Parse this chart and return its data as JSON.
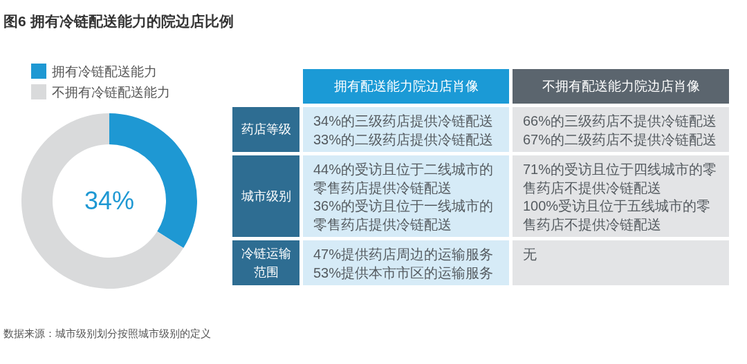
{
  "chart_data": [
    {
      "type": "donut",
      "title": "图6 拥有冷链配送能力的院边店比例",
      "categories": [
        "拥有冷链配送能力",
        "不拥有冷链配送能力"
      ],
      "values": [
        34,
        66
      ],
      "colors": [
        "#1e98d3",
        "#d9dadb"
      ],
      "legend": "top left",
      "value_labels": [
        "34%",
        null
      ],
      "annotations": [
        "数据来源：城市级别划分按照城市级别的定义"
      ]
    },
    {
      "type": "other",
      "categories": [
        "拥有配送能力院边店肖像",
        "不拥有配送能力院边店肖像"
      ],
      "y_categories": [
        "药店等级",
        "城市级别",
        "冷链运输范围"
      ],
      "cell_labels": [
        [
          "34%的三级药店提供冷链配送\n33%的二级药店提供冷链配送",
          "66%的三级药店不提供冷链配送\n67%的二级药店不提供冷链配送"
        ],
        [
          "44%的受访且位于二线城市的零售药店提供冷链配送\n36%的受访且位于一线城市的零售药店提供冷链配送",
          "71%的受访且位于四线城市的零售药店不提供冷链配送\n100%受访且位于五线城市的零售药店不提供冷链配送"
        ],
        [
          "47%提供药店周边的运输服务\n53%提供本市市区的运输服务",
          "无"
        ]
      ]
    }
  ]
}
